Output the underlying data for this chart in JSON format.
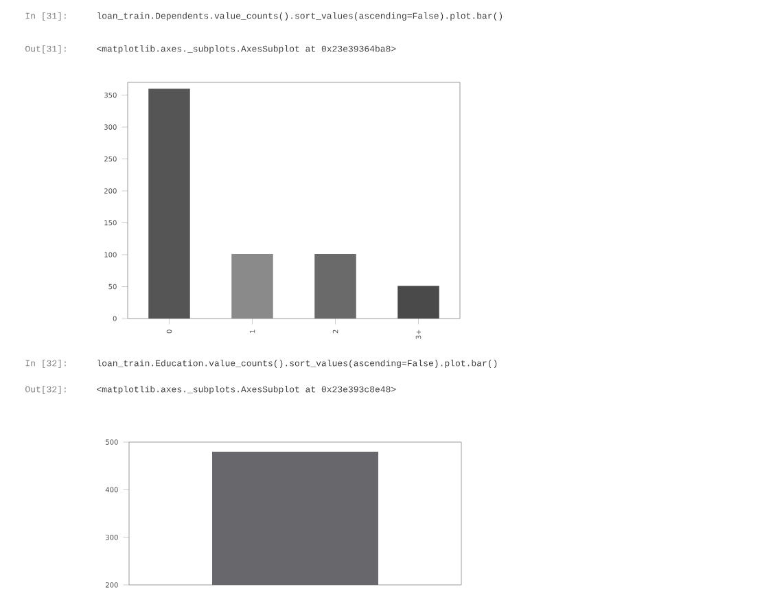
{
  "chart_data": [
    {
      "type": "bar",
      "categories": [
        "0",
        "1",
        "2",
        "3+"
      ],
      "values": [
        360,
        101,
        101,
        51
      ],
      "colors": [
        "#555555",
        "#8a8a8a",
        "#6a6a6a",
        "#4a4a4a"
      ],
      "ylim": [
        0,
        370
      ],
      "yticks": [
        0,
        50,
        100,
        150,
        200,
        250,
        300,
        350
      ],
      "annotations": [
        "In [31]:",
        "loan_train.Dependents.value_counts().sort_values(ascending=False).plot.bar()",
        "Out[31]:",
        "<matplotlib.axes._subplots.AxesSubplot at 0x23e39364ba8>"
      ]
    },
    {
      "type": "bar",
      "categories": [
        null
      ],
      "values": [
        480
      ],
      "colors": [
        "#68686c"
      ],
      "ylim": [
        200,
        500
      ],
      "yticks": [
        200,
        300,
        400,
        500
      ],
      "annotations": [
        "In [32]:",
        "loan_train.Education.value_counts().sort_values(ascending=False).plot.bar()",
        "Out[32]:",
        "<matplotlib.axes._subplots.AxesSubplot at 0x23e393c8e48>"
      ]
    }
  ]
}
